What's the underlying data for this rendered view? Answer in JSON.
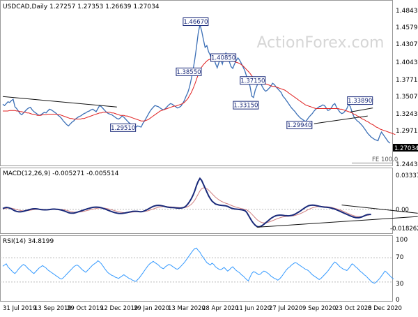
{
  "chart_data": {
    "type": "line",
    "watermark": "ActionForex.com",
    "x_tick_labels": [
      "31 Jul 2019",
      "13 Sep 2019",
      "29 Oct 2019",
      "12 Dec 2019",
      "29 Jan 2020",
      "13 Mar 2020",
      "28 Apr 2020",
      "11 Jun 2020",
      "27 Jul 2020",
      "9 Sep 2020",
      "23 Oct 2020",
      "8 Dec 2020"
    ],
    "colors": {
      "price": "#3b6fb6",
      "ma": "#e02020",
      "rsi": "#3399ff",
      "macd": "#1a2a7a",
      "signal": "#d08080",
      "annotation": "#1a2a7a"
    },
    "price_panel": {
      "header": "USDCAD,Daily  1.27257 1.27353 1.26639 1.27034",
      "ylim": [
        1.235,
        1.495
      ],
      "y_ticks": [
        "1.48430",
        "1.45790",
        "1.43070",
        "1.40430",
        "1.37710",
        "1.35070",
        "1.32430",
        "1.29710",
        "1.27034",
        "1.24430"
      ],
      "last_price": "1.27034",
      "fe_label": "FE 100.0",
      "close": [
        1.333,
        1.331,
        1.334,
        1.337,
        1.336,
        1.339,
        1.341,
        1.329,
        1.326,
        1.322,
        1.318,
        1.316,
        1.319,
        1.322,
        1.325,
        1.327,
        1.328,
        1.324,
        1.321,
        1.319,
        1.317,
        1.315,
        1.316,
        1.318,
        1.32,
        1.319,
        1.322,
        1.325,
        1.324,
        1.322,
        1.32,
        1.318,
        1.315,
        1.313,
        1.31,
        1.306,
        1.303,
        1.3,
        1.298,
        1.301,
        1.304,
        1.306,
        1.309,
        1.311,
        1.313,
        1.314,
        1.316,
        1.318,
        1.319,
        1.321,
        1.322,
        1.324,
        1.325,
        1.323,
        1.321,
        1.326,
        1.331,
        1.329,
        1.326,
        1.323,
        1.32,
        1.318,
        1.317,
        1.316,
        1.314,
        1.312,
        1.31,
        1.309,
        1.311,
        1.314,
        1.312,
        1.309,
        1.306,
        1.303,
        1.301,
        1.299,
        1.297,
        1.296,
        1.298,
        1.297,
        1.296,
        1.302,
        1.306,
        1.311,
        1.316,
        1.321,
        1.325,
        1.328,
        1.331,
        1.33,
        1.329,
        1.327,
        1.325,
        1.324,
        1.326,
        1.329,
        1.332,
        1.334,
        1.333,
        1.331,
        1.329,
        1.327,
        1.328,
        1.33,
        1.334,
        1.339,
        1.346,
        1.352,
        1.361,
        1.374,
        1.388,
        1.405,
        1.425,
        1.448,
        1.462,
        1.452,
        1.438,
        1.425,
        1.428,
        1.418,
        1.412,
        1.403,
        1.408,
        1.399,
        1.392,
        1.401,
        1.405,
        1.398,
        1.409,
        1.416,
        1.41,
        1.402,
        1.394,
        1.391,
        1.398,
        1.404,
        1.408,
        1.404,
        1.399,
        1.393,
        1.387,
        1.378,
        1.372,
        1.362,
        1.346,
        1.344,
        1.356,
        1.363,
        1.371,
        1.368,
        1.362,
        1.357,
        1.354,
        1.356,
        1.359,
        1.362,
        1.367,
        1.365,
        1.361,
        1.358,
        1.355,
        1.352,
        1.346,
        1.343,
        1.339,
        1.335,
        1.331,
        1.327,
        1.324,
        1.321,
        1.317,
        1.314,
        1.311,
        1.309,
        1.307,
        1.305,
        1.308,
        1.312,
        1.315,
        1.318,
        1.322,
        1.325,
        1.327,
        1.329,
        1.33,
        1.332,
        1.331,
        1.327,
        1.323,
        1.324,
        1.327,
        1.332,
        1.334,
        1.328,
        1.324,
        1.32,
        1.318,
        1.319,
        1.322,
        1.326,
        1.333,
        1.329,
        1.32,
        1.313,
        1.309,
        1.306,
        1.304,
        1.301,
        1.298,
        1.294,
        1.29,
        1.286,
        1.283,
        1.28,
        1.278,
        1.276,
        1.275,
        1.274,
        1.282,
        1.288,
        1.284,
        1.28,
        1.276,
        1.272,
        1.27
      ],
      "ma": [
        1.322,
        1.322,
        1.322,
        1.322,
        1.323,
        1.323,
        1.323,
        1.323,
        1.322,
        1.322,
        1.321,
        1.321,
        1.32,
        1.32,
        1.319,
        1.319,
        1.318,
        1.317,
        1.317,
        1.316,
        1.315,
        1.315,
        1.315,
        1.316,
        1.316,
        1.316,
        1.317,
        1.317,
        1.317,
        1.317,
        1.317,
        1.317,
        1.316,
        1.316,
        1.315,
        1.314,
        1.313,
        1.312,
        1.311,
        1.31,
        1.31,
        1.309,
        1.309,
        1.309,
        1.309,
        1.309,
        1.31,
        1.31,
        1.311,
        1.312,
        1.313,
        1.314,
        1.315,
        1.316,
        1.317,
        1.318,
        1.319,
        1.319,
        1.32,
        1.32,
        1.32,
        1.32,
        1.32,
        1.319,
        1.319,
        1.318,
        1.317,
        1.316,
        1.315,
        1.315,
        1.315,
        1.314,
        1.314,
        1.313,
        1.312,
        1.311,
        1.31,
        1.309,
        1.308,
        1.307,
        1.306,
        1.306,
        1.306,
        1.307,
        1.308,
        1.31,
        1.312,
        1.314,
        1.316,
        1.318,
        1.32,
        1.322,
        1.323,
        1.324,
        1.325,
        1.326,
        1.327,
        1.328,
        1.329,
        1.33,
        1.33,
        1.331,
        1.332,
        1.333,
        1.334,
        1.336,
        1.339,
        1.342,
        1.347,
        1.352,
        1.358,
        1.365,
        1.373,
        1.381,
        1.388,
        1.393,
        1.397,
        1.4,
        1.403,
        1.405,
        1.406,
        1.407,
        1.408,
        1.408,
        1.408,
        1.408,
        1.408,
        1.407,
        1.407,
        1.407,
        1.406,
        1.405,
        1.404,
        1.403,
        1.402,
        1.401,
        1.4,
        1.399,
        1.397,
        1.395,
        1.392,
        1.389,
        1.386,
        1.383,
        1.379,
        1.376,
        1.374,
        1.372,
        1.37,
        1.369,
        1.368,
        1.367,
        1.366,
        1.365,
        1.364,
        1.363,
        1.362,
        1.362,
        1.361,
        1.36,
        1.359,
        1.358,
        1.357,
        1.356,
        1.354,
        1.352,
        1.35,
        1.348,
        1.346,
        1.344,
        1.342,
        1.34,
        1.338,
        1.336,
        1.334,
        1.332,
        1.331,
        1.33,
        1.329,
        1.328,
        1.327,
        1.326,
        1.326,
        1.326,
        1.326,
        1.326,
        1.326,
        1.326,
        1.326,
        1.326,
        1.326,
        1.326,
        1.326,
        1.326,
        1.326,
        1.325,
        1.325,
        1.324,
        1.323,
        1.322,
        1.321,
        1.32,
        1.319,
        1.317,
        1.316,
        1.314,
        1.313,
        1.311,
        1.309,
        1.308,
        1.306,
        1.305,
        1.303,
        1.301,
        1.3,
        1.298,
        1.296,
        1.295,
        1.293,
        1.292,
        1.291,
        1.29,
        1.289,
        1.288,
        1.287,
        1.286,
        1.285,
        1.284
      ],
      "labels": [
        {
          "text": "1.46670",
          "i": 118,
          "y": 1.4667,
          "place": "left"
        },
        {
          "text": "1.38550",
          "i": 114,
          "y": 1.3855,
          "place": "left"
        },
        {
          "text": "1.40850",
          "i": 134,
          "y": 1.4085,
          "place": "left"
        },
        {
          "text": "1.37150",
          "i": 151,
          "y": 1.3715,
          "place": "left"
        },
        {
          "text": "1.33150",
          "i": 147,
          "y": 1.3315,
          "place": "left"
        },
        {
          "text": "1.29510",
          "i": 76,
          "y": 1.2951,
          "place": "left"
        },
        {
          "text": "1.29940",
          "i": 178,
          "y": 1.2994,
          "place": "left"
        },
        {
          "text": "1.33890",
          "i": 213,
          "y": 1.3389,
          "place": "left"
        }
      ],
      "trendlines": [
        {
          "i1": 0,
          "y1": 1.3455,
          "i2": 66,
          "y2": 1.3285
        },
        {
          "i1": 180,
          "y1": 1.3015,
          "i2": 211,
          "y2": 1.314
        },
        {
          "i1": 201,
          "y1": 1.3405,
          "i2": 214,
          "y2": 1.3405
        },
        {
          "i1": 201,
          "y1": 1.3205,
          "i2": 214,
          "y2": 1.327
        }
      ]
    },
    "macd_panel": {
      "header": "MACD(12,26,9) -0.005271 -0.005514",
      "ylim": [
        -0.024,
        0.036
      ],
      "y_ticks": [
        "0.03337",
        "0.00",
        "-0.018262"
      ],
      "zero_line": 0,
      "macd": [
        0.0008,
        0.0015,
        0.002,
        0.0018,
        0.0012,
        0.0005,
        -0.0006,
        -0.0015,
        -0.0022,
        -0.0025,
        -0.0026,
        -0.0024,
        -0.002,
        -0.0015,
        -0.001,
        -0.0005,
        0.0,
        0.0004,
        0.0006,
        0.0006,
        0.0004,
        0.0001,
        -0.0002,
        -0.0004,
        -0.0005,
        -0.0005,
        -0.0004,
        -0.0002,
        0.0,
        0.0002,
        0.0002,
        0.0001,
        -0.0001,
        -0.0004,
        -0.0008,
        -0.0013,
        -0.002,
        -0.0027,
        -0.0034,
        -0.0038,
        -0.004,
        -0.0039,
        -0.0035,
        -0.003,
        -0.0024,
        -0.0018,
        -0.0012,
        -0.0006,
        0.0,
        0.0006,
        0.0011,
        0.0016,
        0.002,
        0.0022,
        0.0023,
        0.0022,
        0.002,
        0.0016,
        0.001,
        0.0004,
        -0.0003,
        -0.001,
        -0.0017,
        -0.0024,
        -0.003,
        -0.0035,
        -0.0039,
        -0.0042,
        -0.0043,
        -0.0042,
        -0.004,
        -0.0037,
        -0.0033,
        -0.0029,
        -0.0025,
        -0.0022,
        -0.002,
        -0.002,
        -0.0022,
        -0.0024,
        -0.0025,
        -0.0022,
        -0.0016,
        -0.0008,
        0.0002,
        0.0012,
        0.0022,
        0.003,
        0.0036,
        0.004,
        0.0041,
        0.004,
        0.0037,
        0.0033,
        0.0028,
        0.0024,
        0.0021,
        0.0019,
        0.0018,
        0.0017,
        0.0015,
        0.0013,
        0.0012,
        0.0013,
        0.0016,
        0.0022,
        0.0035,
        0.0055,
        0.008,
        0.011,
        0.0145,
        0.019,
        0.0245,
        0.029,
        0.032,
        0.03,
        0.026,
        0.022,
        0.018,
        0.014,
        0.011,
        0.0085,
        0.007,
        0.0055,
        0.005,
        0.0045,
        0.0042,
        0.004,
        0.0038,
        0.0036,
        0.003,
        0.0022,
        0.0014,
        0.0008,
        0.0004,
        0.0002,
        0.0,
        -0.0002,
        -0.0004,
        -0.0008,
        -0.0014,
        -0.003,
        -0.006,
        -0.009,
        -0.012,
        -0.0145,
        -0.0165,
        -0.0178,
        -0.0182,
        -0.0178,
        -0.0168,
        -0.0155,
        -0.014,
        -0.0125,
        -0.011,
        -0.0095,
        -0.0083,
        -0.0073,
        -0.0066,
        -0.0062,
        -0.006,
        -0.006,
        -0.0062,
        -0.0064,
        -0.0066,
        -0.0067,
        -0.0066,
        -0.0063,
        -0.0058,
        -0.005,
        -0.004,
        -0.003,
        -0.0018,
        -0.0005,
        0.0008,
        0.002,
        0.003,
        0.0038,
        0.0042,
        0.0044,
        0.0043,
        0.004,
        0.0036,
        0.0032,
        0.0028,
        0.0025,
        0.0023,
        0.0022,
        0.002,
        0.0017,
        0.0013,
        0.0008,
        0.0002,
        -0.0005,
        -0.0012,
        -0.002,
        -0.0028,
        -0.0036,
        -0.0044,
        -0.0052,
        -0.006,
        -0.0068,
        -0.0075,
        -0.0081,
        -0.0085,
        -0.0087,
        -0.0086,
        -0.0082,
        -0.0076,
        -0.0068,
        -0.006,
        -0.0055,
        -0.0053,
        -0.0053
      ],
      "signal": [
        0.0005,
        0.0008,
        0.0011,
        0.0013,
        0.0013,
        0.0012,
        0.0008,
        0.0003,
        -0.0002,
        -0.0007,
        -0.0011,
        -0.0014,
        -0.0015,
        -0.0015,
        -0.0014,
        -0.0012,
        -0.0009,
        -0.0006,
        -0.0003,
        -0.0001,
        0.0001,
        0.0001,
        0.0001,
        0.0,
        -0.0001,
        -0.0002,
        -0.0002,
        -0.0002,
        -0.0002,
        -0.0001,
        0.0,
        0.0,
        0.0,
        -0.0001,
        -0.0002,
        -0.0004,
        -0.0007,
        -0.0011,
        -0.0016,
        -0.0021,
        -0.0025,
        -0.0028,
        -0.003,
        -0.003,
        -0.0029,
        -0.0027,
        -0.0024,
        -0.002,
        -0.0016,
        -0.0011,
        -0.0007,
        -0.0002,
        0.0002,
        0.0006,
        0.0009,
        0.0012,
        0.0014,
        0.0015,
        0.0014,
        0.0012,
        0.0009,
        0.0005,
        0.0,
        -0.0005,
        -0.001,
        -0.0015,
        -0.002,
        -0.0025,
        -0.0029,
        -0.0032,
        -0.0034,
        -0.0035,
        -0.0034,
        -0.0033,
        -0.0031,
        -0.0029,
        -0.0027,
        -0.0026,
        -0.0025,
        -0.0025,
        -0.0025,
        -0.0024,
        -0.0022,
        -0.0019,
        -0.0015,
        -0.0009,
        -0.0003,
        0.0003,
        0.001,
        0.0016,
        0.0021,
        0.0025,
        0.0027,
        0.0029,
        0.0029,
        0.0028,
        0.0027,
        0.0026,
        0.0024,
        0.0023,
        0.0021,
        0.002,
        0.0018,
        0.0017,
        0.0017,
        0.0018,
        0.0021,
        0.0028,
        0.0038,
        0.0052,
        0.007,
        0.0094,
        0.0124,
        0.0158,
        0.0191,
        0.0213,
        0.0223,
        0.0222,
        0.0214,
        0.0199,
        0.0181,
        0.0162,
        0.0144,
        0.0126,
        0.0111,
        0.0098,
        0.0087,
        0.0078,
        0.007,
        0.0063,
        0.0057,
        0.005,
        0.0042,
        0.0035,
        0.0028,
        0.0022,
        0.0017,
        0.0012,
        0.0008,
        0.0004,
        -0.0,
        -0.0006,
        -0.0017,
        -0.0032,
        -0.005,
        -0.0069,
        -0.0088,
        -0.0106,
        -0.012,
        -0.0131,
        -0.0137,
        -0.014,
        -0.0139,
        -0.0136,
        -0.0131,
        -0.0124,
        -0.0117,
        -0.011,
        -0.0102,
        -0.0095,
        -0.0089,
        -0.0083,
        -0.0079,
        -0.0076,
        -0.0073,
        -0.0072,
        -0.007,
        -0.0069,
        -0.0067,
        -0.0063,
        -0.0058,
        -0.0052,
        -0.0045,
        -0.0037,
        -0.0028,
        -0.0019,
        -0.0009,
        -0.0,
        0.0008,
        0.0015,
        0.0021,
        0.0025,
        0.0028,
        0.003,
        0.003,
        0.0029,
        0.0028,
        0.0027,
        0.0025,
        0.0023,
        0.002,
        0.0016,
        0.0011,
        0.0006,
        0.0,
        -0.0006,
        -0.0013,
        -0.0021,
        -0.0029,
        -0.0037,
        -0.0045,
        -0.0053,
        -0.006,
        -0.0066,
        -0.0071,
        -0.0074,
        -0.0075,
        -0.0075,
        -0.0073,
        -0.0069,
        -0.0065,
        -0.0061,
        -0.0059
      ],
      "trendlines": [
        {
          "i1": 147,
          "y1": -0.0185,
          "i2": 240,
          "y2": -0.0075
        },
        {
          "i1": 196,
          "y1": 0.0045,
          "i2": 240,
          "y2": -0.004
        }
      ]
    },
    "rsi_panel": {
      "header": "RSI(14) 34.8199",
      "ylim": [
        0,
        100
      ],
      "y_ticks": [
        "100",
        "70",
        "30",
        "0"
      ],
      "levels": [
        70,
        30
      ],
      "rsi": [
        56,
        58,
        60,
        55,
        52,
        49,
        46,
        44,
        47,
        51,
        54,
        57,
        59,
        57,
        54,
        51,
        49,
        46,
        44,
        47,
        50,
        53,
        55,
        57,
        55,
        53,
        50,
        48,
        46,
        44,
        42,
        40,
        38,
        36,
        35,
        37,
        40,
        43,
        46,
        49,
        52,
        55,
        57,
        58,
        56,
        53,
        50,
        48,
        46,
        49,
        52,
        55,
        58,
        60,
        62,
        65,
        63,
        60,
        56,
        52,
        48,
        45,
        43,
        41,
        40,
        38,
        37,
        36,
        38,
        40,
        42,
        40,
        38,
        36,
        35,
        33,
        32,
        31,
        34,
        37,
        41,
        45,
        49,
        53,
        57,
        60,
        62,
        64,
        62,
        60,
        58,
        55,
        53,
        52,
        55,
        57,
        59,
        58,
        56,
        54,
        52,
        51,
        53,
        56,
        59,
        62,
        66,
        70,
        74,
        78,
        82,
        85,
        86,
        82,
        79,
        74,
        70,
        66,
        62,
        60,
        58,
        61,
        59,
        55,
        53,
        51,
        50,
        52,
        54,
        51,
        48,
        50,
        53,
        55,
        52,
        49,
        47,
        45,
        42,
        40,
        37,
        34,
        32,
        38,
        44,
        47,
        46,
        44,
        42,
        43,
        46,
        48,
        47,
        45,
        43,
        40,
        38,
        36,
        35,
        33,
        35,
        38,
        42,
        46,
        50,
        53,
        55,
        58,
        60,
        62,
        61,
        59,
        57,
        55,
        53,
        51,
        50,
        48,
        45,
        42,
        40,
        38,
        36,
        34,
        36,
        39,
        42,
        45,
        48,
        52,
        56,
        60,
        63,
        61,
        58,
        55,
        53,
        51,
        50,
        49,
        52,
        56,
        60,
        58,
        55,
        53,
        50,
        47,
        45,
        42,
        40,
        37,
        34,
        31,
        29,
        28,
        30,
        33,
        36,
        40,
        44,
        48,
        46,
        43,
        40,
        37,
        35
      ]
    }
  }
}
